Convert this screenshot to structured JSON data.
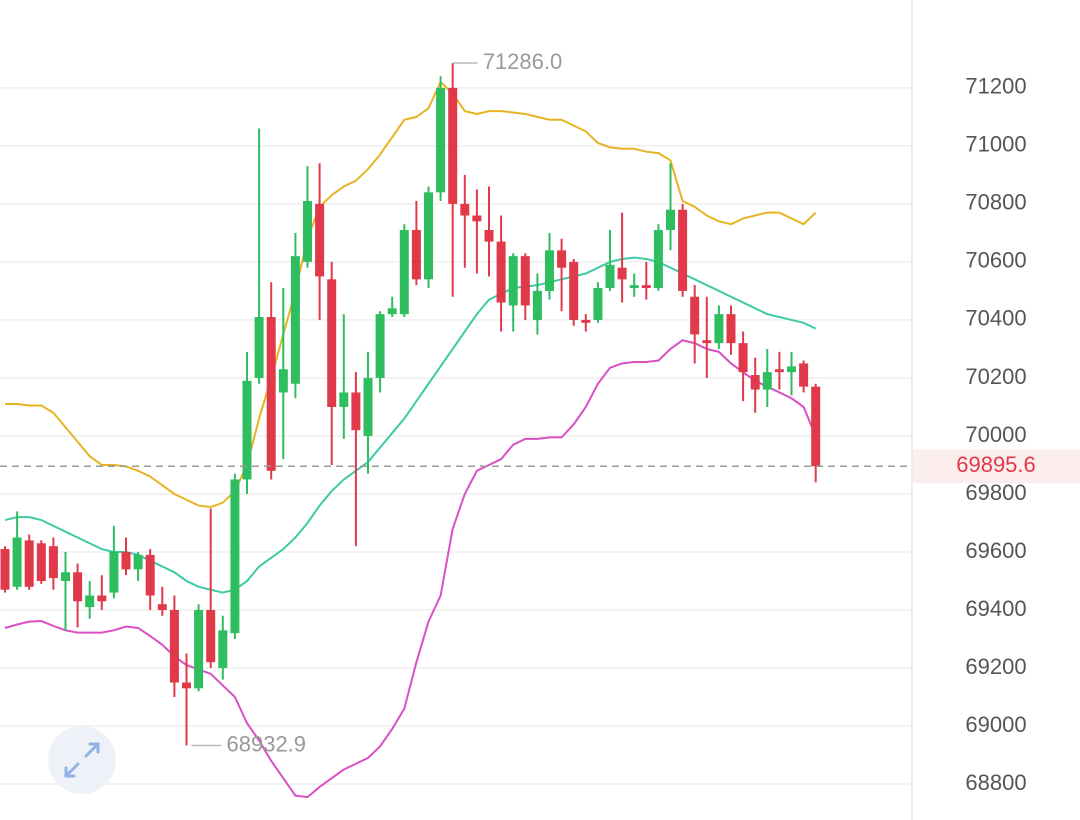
{
  "chart_data": {
    "type": "candlestick",
    "up_color": "#2ebd5f",
    "down_color": "#e0394a",
    "open": [
      69610,
      69480,
      69640,
      69630,
      69620,
      69500,
      69530,
      69410,
      69450,
      69460,
      69600,
      69540,
      69590,
      69420,
      69400,
      69150,
      69130,
      69400,
      69200,
      69320,
      69850,
      70200,
      70410,
      70150,
      70180,
      70600,
      70800,
      70540,
      70100,
      70150,
      70000,
      70200,
      70420,
      70420,
      70710,
      70540,
      70840,
      71200,
      70800,
      70760,
      70710,
      70670,
      70450,
      70620,
      70400,
      70500,
      70640,
      70600,
      70400,
      70400,
      70510,
      70580,
      70510,
      70520,
      70510,
      70710,
      70780,
      70480,
      70330,
      70320,
      70420,
      70320,
      70210,
      70160,
      70230,
      70220,
      70250,
      70170
    ],
    "high": [
      69620,
      69740,
      69660,
      69640,
      69650,
      69600,
      69560,
      69500,
      69520,
      69690,
      69650,
      69600,
      69610,
      69480,
      69450,
      69250,
      69420,
      69750,
      69380,
      69870,
      70290,
      71060,
      70530,
      70510,
      70700,
      70930,
      70940,
      70600,
      70420,
      70220,
      70290,
      70430,
      70480,
      70730,
      70810,
      70860,
      71240,
      71286,
      70900,
      70850,
      70860,
      70760,
      70630,
      70630,
      70560,
      70700,
      70680,
      70610,
      70420,
      70530,
      70710,
      70770,
      70560,
      70600,
      70730,
      70940,
      70800,
      70520,
      70480,
      70450,
      70450,
      70360,
      70270,
      70300,
      70290,
      70290,
      70260,
      70180
    ],
    "low": [
      69460,
      69470,
      69470,
      69490,
      69470,
      69330,
      69340,
      69370,
      69400,
      69440,
      69520,
      69500,
      69400,
      69380,
      69100,
      68932.9,
      69120,
      69200,
      69160,
      69300,
      69800,
      70180,
      69850,
      69920,
      70130,
      70580,
      70400,
      69900,
      69990,
      69620,
      69870,
      70150,
      70410,
      70410,
      70520,
      70510,
      70810,
      70480,
      70580,
      70560,
      70550,
      70360,
      70360,
      70400,
      70350,
      70470,
      70430,
      70380,
      70360,
      70390,
      70500,
      70460,
      70480,
      70470,
      70500,
      70640,
      70480,
      70250,
      70200,
      70300,
      70280,
      70120,
      70080,
      70100,
      70160,
      70140,
      70150,
      69840
    ],
    "close": [
      69470,
      69650,
      69480,
      69500,
      69510,
      69530,
      69430,
      69450,
      69430,
      69600,
      69540,
      69590,
      69450,
      69400,
      69150,
      69130,
      69400,
      69220,
      69330,
      69850,
      70190,
      70410,
      69880,
      70230,
      70620,
      70810,
      70550,
      70100,
      70150,
      70020,
      70200,
      70420,
      70440,
      70710,
      70540,
      70840,
      71200,
      70800,
      70760,
      70740,
      70670,
      70460,
      70620,
      70450,
      70500,
      70640,
      70580,
      70400,
      70390,
      70510,
      70590,
      70540,
      70520,
      70510,
      70710,
      70780,
      70500,
      70350,
      70320,
      70420,
      70320,
      70220,
      70160,
      70220,
      70220,
      70240,
      70170,
      69895.6
    ],
    "bands": [
      {
        "color": "#e6b422",
        "values": [
          70110,
          70110,
          70105,
          70105,
          70080,
          70030,
          69980,
          69930,
          69900,
          69900,
          69895,
          69880,
          69860,
          69830,
          69800,
          69780,
          69760,
          69755,
          69770,
          69810,
          69900,
          70060,
          70200,
          70350,
          70500,
          70680,
          70790,
          70830,
          70860,
          70880,
          70920,
          70970,
          71030,
          71090,
          71100,
          71130,
          71220,
          71180,
          71120,
          71110,
          71120,
          71120,
          71115,
          71110,
          71100,
          71090,
          71090,
          71070,
          71050,
          71010,
          70995,
          70990,
          70990,
          70980,
          70975,
          70950,
          70810,
          70790,
          70760,
          70740,
          70730,
          70750,
          70760,
          70770,
          70770,
          70750,
          70730,
          70770
        ]
      },
      {
        "color": "#3ec9a7",
        "values": [
          69710,
          69720,
          69720,
          69710,
          69690,
          69670,
          69650,
          69630,
          69610,
          69600,
          69600,
          69590,
          69570,
          69550,
          69530,
          69500,
          69480,
          69470,
          69460,
          69470,
          69500,
          69550,
          69580,
          69610,
          69650,
          69700,
          69760,
          69810,
          69850,
          69880,
          69910,
          69960,
          70010,
          70060,
          70120,
          70180,
          70240,
          70300,
          70360,
          70420,
          70470,
          70490,
          70510,
          70515,
          70520,
          70530,
          70540,
          70550,
          70560,
          70580,
          70600,
          70610,
          70615,
          70610,
          70600,
          70580,
          70560,
          70540,
          70520,
          70500,
          70480,
          70460,
          70440,
          70420,
          70410,
          70400,
          70390,
          70370
        ]
      },
      {
        "color": "#d94fc4",
        "values": [
          69338,
          69350,
          69360,
          69362,
          69345,
          69330,
          69322,
          69322,
          69322,
          69330,
          69343,
          69338,
          69310,
          69280,
          69240,
          69210,
          69195,
          69180,
          69140,
          69100,
          69010,
          68950,
          68880,
          68820,
          68760,
          68755,
          68790,
          68820,
          68850,
          68870,
          68890,
          68930,
          68990,
          69060,
          69220,
          69360,
          69450,
          69680,
          69800,
          69880,
          69900,
          69920,
          69970,
          69990,
          69990,
          69995,
          69995,
          70040,
          70100,
          70180,
          70235,
          70250,
          70255,
          70255,
          70260,
          70300,
          70330,
          70320,
          70300,
          70290,
          70250,
          70220,
          70190,
          70170,
          70150,
          70130,
          70100,
          70000
        ]
      }
    ],
    "ylim": [
      68676,
      71503
    ],
    "yticks": [
      68800,
      69000,
      69200,
      69400,
      69600,
      69800,
      70000,
      70200,
      70400,
      70600,
      70800,
      71000,
      71200
    ],
    "grid": true,
    "max_annotation": {
      "value": 71286,
      "label": "71286.0"
    },
    "min_annotation": 68932.9,
    "last_price": 69895.6
  }
}
